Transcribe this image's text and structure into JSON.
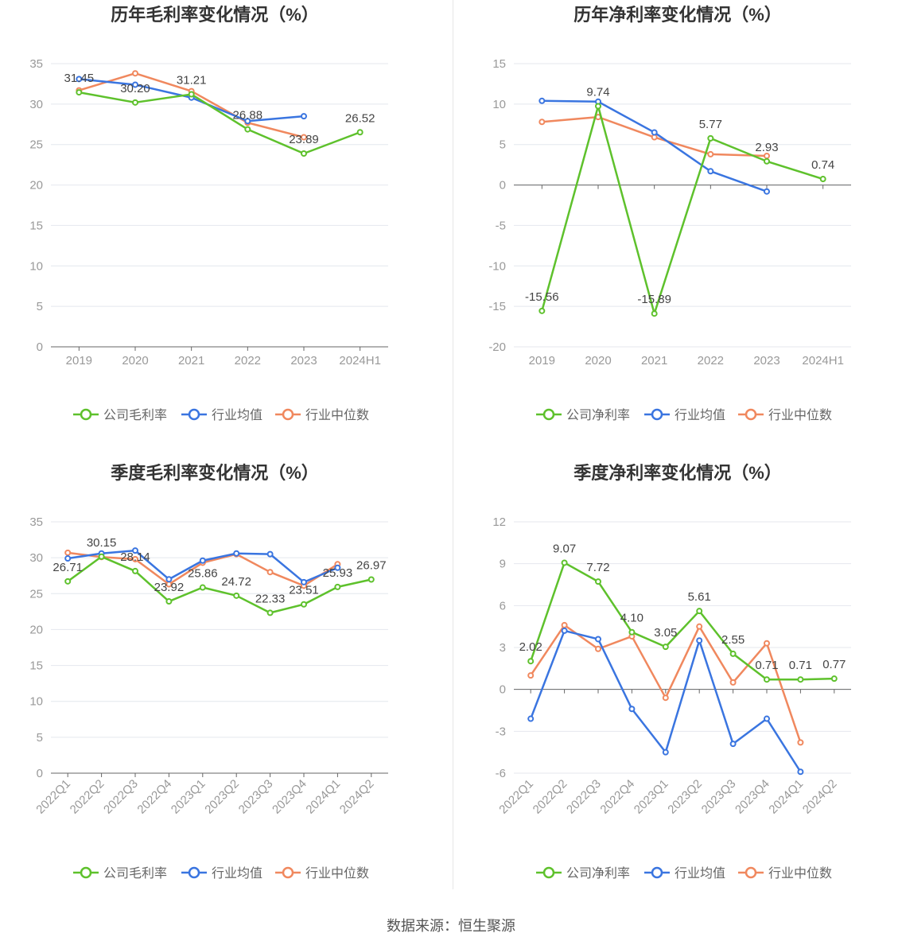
{
  "footer": "数据来源：恒生聚源",
  "colors": {
    "company": "#5ec12c",
    "avg": "#3a75e0",
    "median": "#f0885e"
  },
  "chart_data": [
    {
      "type": "line",
      "title": "历年毛利率变化情况（%）",
      "categories": [
        "2019",
        "2020",
        "2021",
        "2022",
        "2023",
        "2024H1"
      ],
      "ylim": [
        0,
        35
      ],
      "yticks": [
        0,
        5,
        10,
        15,
        20,
        25,
        30,
        35
      ],
      "rotate_x": false,
      "grid": true,
      "legend": "bottom-center",
      "series": [
        {
          "name": "公司毛利率",
          "key": "company",
          "values": [
            31.45,
            30.2,
            31.21,
            26.88,
            23.89,
            26.52
          ],
          "labels": [
            "31.45",
            "30.20",
            "31.21",
            "26.88",
            "23.89",
            "26.52"
          ]
        },
        {
          "name": "行业均值",
          "key": "avg",
          "values": [
            33.1,
            32.4,
            30.8,
            27.9,
            28.5,
            null
          ]
        },
        {
          "name": "行业中位数",
          "key": "median",
          "values": [
            31.7,
            33.8,
            31.6,
            27.7,
            25.9,
            null
          ]
        }
      ]
    },
    {
      "type": "line",
      "title": "历年净利率变化情况（%）",
      "categories": [
        "2019",
        "2020",
        "2021",
        "2022",
        "2023",
        "2024H1"
      ],
      "ylim": [
        -20,
        15
      ],
      "yticks": [
        -20,
        -15,
        -10,
        -5,
        0,
        5,
        10,
        15
      ],
      "rotate_x": false,
      "grid": true,
      "legend": "bottom-center",
      "series": [
        {
          "name": "公司净利率",
          "key": "company",
          "values": [
            -15.56,
            9.74,
            -15.89,
            5.77,
            2.93,
            0.74
          ],
          "labels": [
            "-15.56",
            "9.74",
            "-15.89",
            "5.77",
            "2.93",
            "0.74"
          ]
        },
        {
          "name": "行业均值",
          "key": "avg",
          "values": [
            10.4,
            10.3,
            6.5,
            1.7,
            -0.8,
            null
          ]
        },
        {
          "name": "行业中位数",
          "key": "median",
          "values": [
            7.8,
            8.4,
            5.9,
            3.8,
            3.6,
            null
          ]
        }
      ]
    },
    {
      "type": "line",
      "title": "季度毛利率变化情况（%）",
      "categories": [
        "2022Q1",
        "2022Q2",
        "2022Q3",
        "2022Q4",
        "2023Q1",
        "2023Q2",
        "2023Q3",
        "2023Q4",
        "2024Q1",
        "2024Q2"
      ],
      "ylim": [
        0,
        35
      ],
      "yticks": [
        0,
        5,
        10,
        15,
        20,
        25,
        30,
        35
      ],
      "rotate_x": true,
      "grid": true,
      "legend": "bottom-center",
      "series": [
        {
          "name": "公司毛利率",
          "key": "company",
          "values": [
            26.71,
            30.15,
            28.14,
            23.92,
            25.86,
            24.72,
            22.33,
            23.51,
            25.93,
            26.97
          ],
          "labels": [
            "26.71",
            "30.15",
            "28.14",
            "23.92",
            "25.86",
            "24.72",
            "22.33",
            "23.51",
            "25.93",
            "26.97"
          ]
        },
        {
          "name": "行业均值",
          "key": "avg",
          "values": [
            29.9,
            30.6,
            31.0,
            27.0,
            29.6,
            30.6,
            30.5,
            26.6,
            28.6,
            null
          ]
        },
        {
          "name": "行业中位数",
          "key": "median",
          "values": [
            30.7,
            30.1,
            29.8,
            26.3,
            29.3,
            30.5,
            28.0,
            26.1,
            29.1,
            null
          ]
        }
      ]
    },
    {
      "type": "line",
      "title": "季度净利率变化情况（%）",
      "categories": [
        "2022Q1",
        "2022Q2",
        "2022Q3",
        "2022Q4",
        "2023Q1",
        "2023Q2",
        "2023Q3",
        "2023Q4",
        "2024Q1",
        "2024Q2"
      ],
      "ylim": [
        -6,
        12
      ],
      "yticks": [
        -6,
        -3,
        0,
        3,
        6,
        9,
        12
      ],
      "rotate_x": true,
      "grid": true,
      "legend": "bottom-center",
      "series": [
        {
          "name": "公司净利率",
          "key": "company",
          "values": [
            2.02,
            9.07,
            7.72,
            4.1,
            3.05,
            5.61,
            2.55,
            0.71,
            0.71,
            0.77
          ],
          "labels": [
            "2.02",
            "9.07",
            "7.72",
            "4.10",
            "3.05",
            "5.61",
            "2.55",
            "0.71",
            "0.71",
            "0.77"
          ]
        },
        {
          "name": "行业均值",
          "key": "avg",
          "values": [
            -2.1,
            4.2,
            3.6,
            -1.4,
            -4.5,
            3.5,
            -3.9,
            -2.1,
            -5.9,
            null
          ]
        },
        {
          "name": "行业中位数",
          "key": "median",
          "values": [
            1.0,
            4.6,
            2.9,
            3.8,
            -0.6,
            4.5,
            0.5,
            3.3,
            -3.8,
            null
          ]
        }
      ]
    }
  ]
}
